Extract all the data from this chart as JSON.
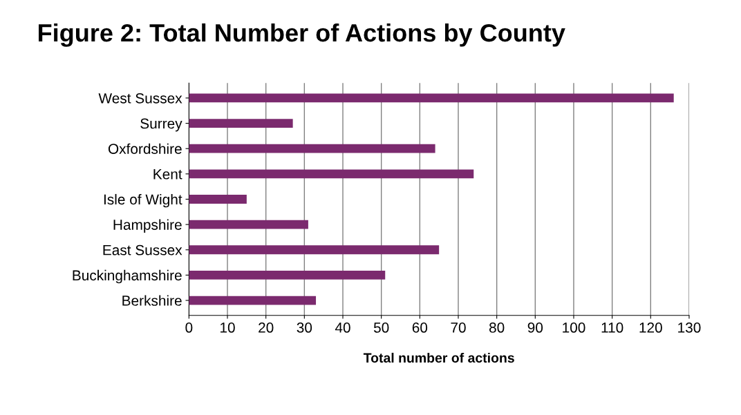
{
  "chart_data": {
    "type": "bar",
    "orientation": "horizontal",
    "title": "Figure 2: Total Number of Actions by County",
    "xlabel": "Total number of actions",
    "categories": [
      "West Sussex",
      "Surrey",
      "Oxfordshire",
      "Kent",
      "Isle of Wight",
      "Hampshire",
      "East Sussex",
      "Buckinghamshire",
      "Berkshire"
    ],
    "values": [
      126,
      27,
      64,
      74,
      15,
      31,
      65,
      51,
      33
    ],
    "color": "#7b2a6e",
    "xlim": [
      0,
      130
    ],
    "xticks": [
      0,
      10,
      20,
      30,
      40,
      50,
      60,
      70,
      80,
      90,
      100,
      110,
      120,
      130
    ],
    "grid": "x",
    "legend": false
  }
}
